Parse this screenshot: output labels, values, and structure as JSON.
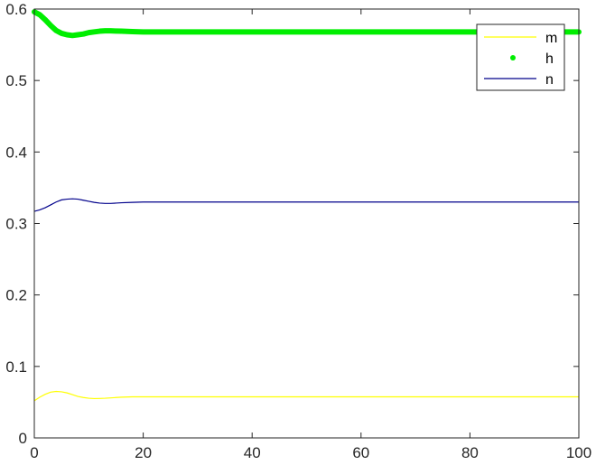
{
  "chart_data": {
    "type": "line",
    "title": "",
    "xlabel": "",
    "ylabel": "",
    "xlim": [
      0,
      100
    ],
    "ylim": [
      0,
      0.6
    ],
    "xticks": [
      0,
      20,
      40,
      60,
      80,
      100
    ],
    "yticks": [
      0,
      0.1,
      0.2,
      0.3,
      0.4,
      0.5,
      0.6
    ],
    "xtick_labels": [
      "0",
      "20",
      "40",
      "60",
      "80",
      "100"
    ],
    "ytick_labels": [
      "0",
      "0.1",
      "0.2",
      "0.3",
      "0.4",
      "0.5",
      "0.6"
    ],
    "grid": false,
    "legend_position": "top-right",
    "series": [
      {
        "name": "m",
        "color": "#ffff00",
        "style": "line",
        "x": [
          0,
          1,
          2,
          3,
          4,
          5,
          6,
          7,
          8,
          9,
          10,
          11,
          12,
          13,
          14,
          15,
          16,
          18,
          20,
          25,
          30,
          40,
          50,
          60,
          70,
          80,
          90,
          100
        ],
        "y": [
          0.052,
          0.057,
          0.061,
          0.064,
          0.065,
          0.0645,
          0.063,
          0.0605,
          0.058,
          0.0565,
          0.0555,
          0.055,
          0.0552,
          0.0555,
          0.056,
          0.0565,
          0.057,
          0.0575,
          0.0575,
          0.0575,
          0.0575,
          0.0575,
          0.0575,
          0.0575,
          0.0575,
          0.0575,
          0.0575,
          0.0575
        ]
      },
      {
        "name": "h",
        "color": "#00ee00",
        "style": "dots",
        "x": [
          0,
          1,
          2,
          3,
          4,
          5,
          6,
          7,
          8,
          9,
          10,
          11,
          12,
          13,
          14,
          15,
          16,
          18,
          20,
          25,
          30,
          40,
          50,
          60,
          70,
          80,
          90,
          100
        ],
        "y": [
          0.596,
          0.592,
          0.585,
          0.577,
          0.57,
          0.566,
          0.564,
          0.563,
          0.564,
          0.565,
          0.567,
          0.568,
          0.569,
          0.5695,
          0.5695,
          0.5692,
          0.569,
          0.5685,
          0.568,
          0.568,
          0.568,
          0.568,
          0.568,
          0.568,
          0.568,
          0.568,
          0.568,
          0.568
        ]
      },
      {
        "name": "n",
        "color": "#00008b",
        "style": "line",
        "x": [
          0,
          1,
          2,
          3,
          4,
          5,
          6,
          7,
          8,
          9,
          10,
          11,
          12,
          13,
          14,
          15,
          16,
          18,
          20,
          25,
          30,
          40,
          50,
          60,
          70,
          80,
          90,
          100
        ],
        "y": [
          0.317,
          0.319,
          0.322,
          0.326,
          0.33,
          0.333,
          0.334,
          0.3345,
          0.334,
          0.3325,
          0.331,
          0.3295,
          0.3285,
          0.328,
          0.328,
          0.3285,
          0.329,
          0.3295,
          0.33,
          0.33,
          0.33,
          0.33,
          0.33,
          0.33,
          0.33,
          0.33,
          0.33,
          0.33
        ]
      }
    ]
  }
}
